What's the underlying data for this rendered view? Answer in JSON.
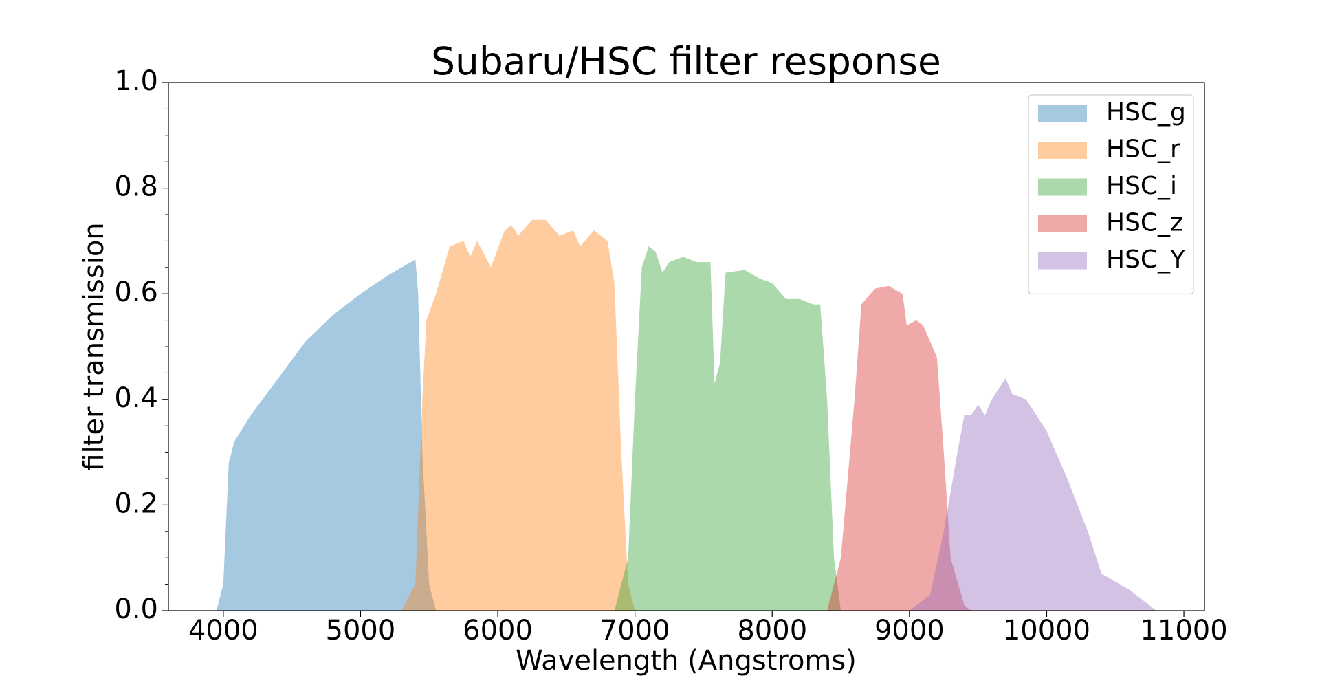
{
  "chart_data": {
    "type": "area",
    "title": "Subaru/HSC filter response",
    "x_label": "Wavelength (Angstroms)",
    "y_label": "filter transmission",
    "xlim": [
      3600,
      11150
    ],
    "ylim": [
      0,
      1
    ],
    "xticks": [
      4000,
      5000,
      6000,
      7000,
      8000,
      9000,
      10000,
      11000
    ],
    "yticks": [
      {
        "value": 0,
        "label": "0.0"
      },
      0.2,
      0.4,
      0.6,
      0.8,
      {
        "value": 1,
        "label": "1.0"
      }
    ],
    "yminorticks": [
      0.05,
      0.1,
      0.15,
      0.25,
      0.3,
      0.35,
      0.45,
      0.5,
      0.55,
      0.65,
      0.7,
      0.75,
      0.85,
      0.9,
      0.95
    ],
    "alpha": 0.4,
    "legend": "upper right",
    "series": [
      {
        "name": "HSC_g",
        "color": "#1f77b4",
        "x": [
          3950,
          4000,
          4040,
          4080,
          4200,
          4400,
          4600,
          4800,
          5000,
          5200,
          5300,
          5400,
          5420,
          5450,
          5500,
          5550
        ],
        "values": [
          0,
          0.05,
          0.28,
          0.32,
          0.37,
          0.44,
          0.51,
          0.56,
          0.6,
          0.635,
          0.65,
          0.665,
          0.6,
          0.3,
          0.05,
          0
        ]
      },
      {
        "name": "HSC_r",
        "color": "#ff7f0e",
        "x": [
          5300,
          5400,
          5450,
          5480,
          5550,
          5650,
          5750,
          5800,
          5850,
          5950,
          6050,
          6100,
          6150,
          6250,
          6350,
          6450,
          6550,
          6600,
          6700,
          6800,
          6850,
          6900,
          6950,
          7000
        ],
        "values": [
          0,
          0.05,
          0.4,
          0.55,
          0.6,
          0.69,
          0.7,
          0.67,
          0.7,
          0.65,
          0.72,
          0.73,
          0.71,
          0.74,
          0.74,
          0.71,
          0.72,
          0.69,
          0.72,
          0.7,
          0.62,
          0.3,
          0.05,
          0
        ]
      },
      {
        "name": "HSC_i",
        "color": "#2ca02c",
        "x": [
          6850,
          6950,
          7000,
          7050,
          7100,
          7150,
          7200,
          7250,
          7350,
          7450,
          7550,
          7580,
          7620,
          7660,
          7800,
          7900,
          8000,
          8100,
          8200,
          8300,
          8350,
          8400,
          8450,
          8500
        ],
        "values": [
          0,
          0.1,
          0.4,
          0.65,
          0.69,
          0.68,
          0.64,
          0.66,
          0.67,
          0.66,
          0.66,
          0.43,
          0.47,
          0.64,
          0.645,
          0.63,
          0.62,
          0.59,
          0.59,
          0.58,
          0.58,
          0.4,
          0.1,
          0
        ]
      },
      {
        "name": "HSC_z",
        "color": "#d62728",
        "x": [
          8400,
          8500,
          8600,
          8650,
          8750,
          8850,
          8950,
          8980,
          9050,
          9100,
          9200,
          9250,
          9300,
          9400,
          9450
        ],
        "values": [
          0,
          0.1,
          0.4,
          0.58,
          0.61,
          0.615,
          0.6,
          0.54,
          0.55,
          0.54,
          0.48,
          0.3,
          0.1,
          0.01,
          0
        ]
      },
      {
        "name": "HSC_Y",
        "color": "#9467bd",
        "x": [
          9000,
          9150,
          9250,
          9350,
          9400,
          9450,
          9500,
          9550,
          9600,
          9700,
          9750,
          9850,
          10000,
          10150,
          10300,
          10400,
          10600,
          10800
        ],
        "values": [
          0,
          0.03,
          0.15,
          0.3,
          0.37,
          0.37,
          0.39,
          0.37,
          0.4,
          0.44,
          0.41,
          0.4,
          0.34,
          0.25,
          0.15,
          0.07,
          0.04,
          0
        ]
      }
    ]
  }
}
